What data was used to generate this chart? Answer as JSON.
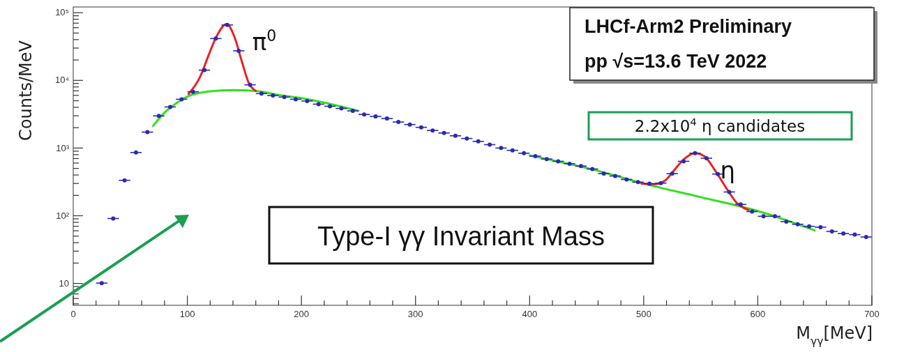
{
  "chart_data": {
    "type": "scatter",
    "xlabel": "M$_{γγ}$[MeV]",
    "ylabel": "Counts/MeV",
    "log": "y",
    "xlim": [
      0,
      700
    ],
    "xticks": [
      0,
      {
        "value": 20,
        "label": null
      },
      {
        "value": 40,
        "label": null
      },
      {
        "value": 60,
        "label": null
      },
      {
        "value": 80,
        "label": null
      },
      100,
      {
        "value": 120,
        "label": null
      },
      {
        "value": 140,
        "label": null
      },
      {
        "value": 160,
        "label": null
      },
      {
        "value": 180,
        "label": null
      },
      200,
      {
        "value": 220,
        "label": null
      },
      {
        "value": 240,
        "label": null
      },
      {
        "value": 260,
        "label": null
      },
      {
        "value": 280,
        "label": null
      },
      300,
      {
        "value": 320,
        "label": null
      },
      {
        "value": 340,
        "label": null
      },
      {
        "value": 360,
        "label": null
      },
      {
        "value": 380,
        "label": null
      },
      400,
      {
        "value": 420,
        "label": null
      },
      {
        "value": 440,
        "label": null
      },
      {
        "value": 460,
        "label": null
      },
      {
        "value": 480,
        "label": null
      },
      500,
      {
        "value": 520,
        "label": null
      },
      {
        "value": 540,
        "label": null
      },
      {
        "value": 560,
        "label": null
      },
      {
        "value": 580,
        "label": null
      },
      600,
      {
        "value": 620,
        "label": null
      },
      {
        "value": 640,
        "label": null
      },
      {
        "value": 660,
        "label": null
      },
      {
        "value": 680,
        "label": null
      },
      700
    ],
    "ylim": [
      4.7,
      120000
    ],
    "yticks": [
      {
        "value": 5,
        "label": null
      },
      {
        "value": 6,
        "label": null
      },
      {
        "value": 7,
        "label": null
      },
      {
        "value": 8,
        "label": null
      },
      {
        "value": 9,
        "label": null
      },
      10,
      {
        "value": 20,
        "label": null
      },
      {
        "value": 30,
        "label": null
      },
      {
        "value": 40,
        "label": null
      },
      {
        "value": 50,
        "label": null
      },
      {
        "value": 60,
        "label": null
      },
      {
        "value": 70,
        "label": null
      },
      {
        "value": 80,
        "label": null
      },
      {
        "value": 90,
        "label": null
      },
      {
        "value": 100,
        "label": "10²"
      },
      {
        "value": 200,
        "label": null
      },
      {
        "value": 300,
        "label": null
      },
      {
        "value": 400,
        "label": null
      },
      {
        "value": 500,
        "label": null
      },
      {
        "value": 600,
        "label": null
      },
      {
        "value": 700,
        "label": null
      },
      {
        "value": 800,
        "label": null
      },
      {
        "value": 900,
        "label": null
      },
      {
        "value": 1000,
        "label": "10³"
      },
      {
        "value": 2000,
        "label": null
      },
      {
        "value": 3000,
        "label": null
      },
      {
        "value": 4000,
        "label": null
      },
      {
        "value": 5000,
        "label": null
      },
      {
        "value": 6000,
        "label": null
      },
      {
        "value": 7000,
        "label": null
      },
      {
        "value": 8000,
        "label": null
      },
      {
        "value": 9000,
        "label": null
      },
      {
        "value": 10000,
        "label": "10⁴"
      },
      {
        "value": 20000,
        "label": null
      },
      {
        "value": 30000,
        "label": null
      },
      {
        "value": 40000,
        "label": null
      },
      {
        "value": 50000,
        "label": null
      },
      {
        "value": 60000,
        "label": null
      },
      {
        "value": 70000,
        "label": null
      },
      {
        "value": 80000,
        "label": null
      },
      {
        "value": 90000,
        "label": null
      },
      {
        "value": 100000,
        "label": "10⁵"
      }
    ],
    "series": [
      {
        "color": "#2a2ab4",
        "x": [
          25,
          35,
          45,
          55,
          65,
          75,
          85,
          95,
          105,
          115,
          125,
          135,
          145,
          155,
          165,
          175,
          185,
          195,
          205,
          215,
          225,
          235,
          245,
          255,
          265,
          275,
          285,
          295,
          305,
          315,
          325,
          335,
          345,
          355,
          365,
          375,
          385,
          395,
          405,
          415,
          425,
          435,
          445,
          455,
          465,
          475,
          485,
          495,
          505,
          515,
          525,
          535,
          545,
          555,
          565,
          575,
          585,
          595,
          605,
          615,
          625,
          635,
          645,
          655,
          665,
          675,
          685,
          695
        ],
        "values": [
          10,
          90,
          330,
          850,
          1700,
          2950,
          4000,
          5200,
          6700,
          14000,
          41000,
          65000,
          27000,
          8500,
          6300,
          5900,
          5600,
          5200,
          4900,
          4400,
          4100,
          3800,
          3500,
          3100,
          2900,
          2700,
          2400,
          2200,
          2000,
          1800,
          1650,
          1500,
          1370,
          1240,
          1110,
          990,
          915,
          830,
          750,
          680,
          630,
          580,
          535,
          485,
          414,
          382,
          340,
          310,
          295,
          300,
          414,
          630,
          830,
          700,
          408,
          222,
          145,
          114,
          97,
          97,
          81,
          74,
          69,
          67,
          58,
          54,
          52,
          48
        ],
        "xerrors": [
          5,
          5,
          5,
          5,
          5,
          5,
          5,
          5,
          5,
          5,
          5,
          5,
          5,
          5,
          5,
          5,
          5,
          5,
          5,
          5,
          5,
          5,
          5,
          5,
          5,
          5,
          5,
          5,
          5,
          5,
          5,
          5,
          5,
          5,
          5,
          5,
          5,
          5,
          5,
          5,
          5,
          5,
          5,
          5,
          5,
          5,
          5,
          5,
          5,
          5,
          5,
          5,
          5,
          5,
          5,
          5,
          5,
          5,
          5,
          5,
          5,
          5,
          5,
          5,
          5,
          5,
          5,
          5
        ]
      },
      {
        "type": "line",
        "color": "#33e01e",
        "x": [
          70,
          80,
          90,
          100,
          120,
          140,
          160,
          180,
          200,
          250,
          325,
          400,
          460,
          500,
          550,
          600,
          650
        ],
        "values": [
          2100,
          3300,
          4500,
          5700,
          6800,
          7100,
          6900,
          6000,
          5400,
          3500,
          null,
          770,
          455,
          295,
          186,
          116,
          60
        ]
      },
      {
        "type": "line",
        "color": "#ee2020",
        "x": [
          101,
          111,
          119,
          125,
          134.5,
          141.6,
          147.7,
          153.8,
          160
        ],
        "values": [
          6200,
          11000,
          24000,
          42000,
          67000,
          42000,
          19000,
          9100,
          6900
        ]
      },
      {
        "type": "line",
        "color": "#ee2020",
        "x": [
          498,
          510,
          518.5,
          526.7,
          534.8,
          545,
          553,
          563,
          573.5,
          581.7,
          592
        ],
        "values": [
          295,
          290,
          325,
          465,
          665,
          830,
          750,
          450,
          237,
          152,
          120
        ]
      }
    ],
    "annotations": [
      "LHCf-Arm2 Preliminary",
      "pp √s=13.6 TeV 2022",
      "2.2x10$^{4}$ η candidates",
      "Type-I γγ Invariant Mass",
      {
        "text": "π$^{0}$",
        "x": 135,
        "y": 65000
      },
      {
        "text": "η",
        "x": 545,
        "y": 830
      }
    ]
  }
}
